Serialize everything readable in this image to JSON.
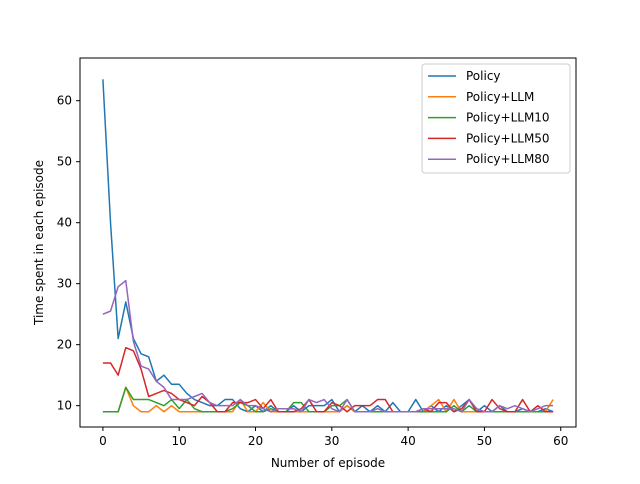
{
  "chart_data": {
    "type": "line",
    "title": "",
    "xlabel": "Number of episode",
    "ylabel": "Time spent in each episode",
    "xlim": [
      -3,
      62
    ],
    "ylim": [
      6.5,
      67
    ],
    "xticks": [
      0,
      10,
      20,
      30,
      40,
      50,
      60
    ],
    "yticks": [
      10,
      20,
      30,
      40,
      50,
      60
    ],
    "grid": false,
    "legend_position": "top-right",
    "x": [
      0,
      1,
      2,
      3,
      4,
      5,
      6,
      7,
      8,
      9,
      10,
      11,
      12,
      13,
      14,
      15,
      16,
      17,
      18,
      19,
      20,
      21,
      22,
      23,
      24,
      25,
      26,
      27,
      28,
      29,
      30,
      31,
      32,
      33,
      34,
      35,
      36,
      37,
      38,
      39,
      40,
      41,
      42,
      43,
      44,
      45,
      46,
      47,
      48,
      49,
      50,
      51,
      52,
      53,
      54,
      55,
      56,
      57,
      58,
      59
    ],
    "series": [
      {
        "name": "Policy",
        "color": "#1f77b4",
        "values": [
          63.5,
          40,
          21,
          27,
          21,
          18.5,
          18,
          14,
          15,
          13.5,
          13.5,
          12,
          11,
          10.5,
          10,
          10,
          11,
          11,
          9.5,
          9,
          10,
          9,
          10,
          9,
          9,
          10,
          9,
          10,
          10,
          10,
          11,
          9,
          10,
          9,
          10,
          9,
          10,
          9,
          10.5,
          9,
          9,
          11,
          9,
          10,
          9,
          10,
          9,
          10,
          11,
          9,
          10,
          9,
          10,
          9,
          9,
          9.5,
          9,
          9,
          9.5,
          9
        ]
      },
      {
        "name": "Policy+LLM",
        "color": "#ff7f0e",
        "values": [
          9,
          9,
          9,
          13,
          10,
          9,
          9,
          10,
          9,
          10,
          9,
          9,
          9,
          9,
          9,
          9,
          9,
          9,
          11,
          9,
          9,
          10.5,
          9,
          9,
          9,
          9,
          9,
          9,
          9,
          9,
          9,
          9,
          10,
          9,
          9,
          9,
          9,
          9,
          9,
          9,
          9,
          9,
          9,
          10,
          11,
          9,
          11,
          9,
          9,
          9,
          9,
          9,
          9,
          9,
          9,
          9,
          9,
          9,
          9,
          11
        ]
      },
      {
        "name": "Policy+LLM10",
        "color": "#2ca02c",
        "values": [
          9,
          9,
          9,
          13,
          11,
          11,
          11,
          10.5,
          10,
          11,
          9.5,
          11,
          9.5,
          9,
          9,
          9,
          9,
          9.5,
          10.5,
          10,
          9,
          9,
          9.5,
          9,
          9,
          10.5,
          10.5,
          9,
          9,
          9,
          10,
          10,
          11,
          9,
          9,
          9,
          9,
          9,
          9,
          9,
          9,
          9,
          9,
          9,
          9,
          9,
          10,
          9,
          10,
          9,
          9,
          9,
          9,
          9,
          9,
          9,
          9,
          9,
          9,
          9
        ]
      },
      {
        "name": "Policy+LLM50",
        "color": "#d62728",
        "values": [
          17,
          17,
          15,
          19.5,
          19,
          16,
          11.5,
          12,
          12.5,
          12,
          11,
          10.5,
          10,
          11.5,
          10.5,
          9,
          9,
          10.5,
          10.5,
          10.5,
          11,
          9.5,
          11,
          9,
          9,
          9,
          9.5,
          11,
          9,
          9,
          10.5,
          10,
          9,
          10,
          10,
          10,
          11,
          11,
          9,
          9,
          9,
          9,
          9.5,
          9,
          10.5,
          10.5,
          9,
          9.5,
          11,
          9,
          9,
          11,
          9.5,
          9,
          9,
          11,
          9,
          10,
          9,
          9
        ]
      },
      {
        "name": "Policy+LLM80",
        "color": "#9467bd",
        "values": [
          25,
          25.5,
          29.5,
          30.5,
          20.5,
          16.5,
          16,
          14,
          13,
          11,
          11,
          11,
          11.5,
          12,
          10.5,
          10,
          10,
          10,
          11,
          10,
          10,
          9.5,
          9,
          9.5,
          9.5,
          9.5,
          9,
          11,
          10.5,
          11,
          9.5,
          9,
          11,
          9,
          9,
          9,
          9.5,
          9,
          9,
          9,
          9,
          9,
          9.5,
          9.5,
          9.5,
          9.5,
          9.5,
          9,
          11,
          9.5,
          9,
          9,
          10,
          9.5,
          10,
          9.5,
          9,
          9.5,
          10,
          10
        ]
      }
    ]
  }
}
